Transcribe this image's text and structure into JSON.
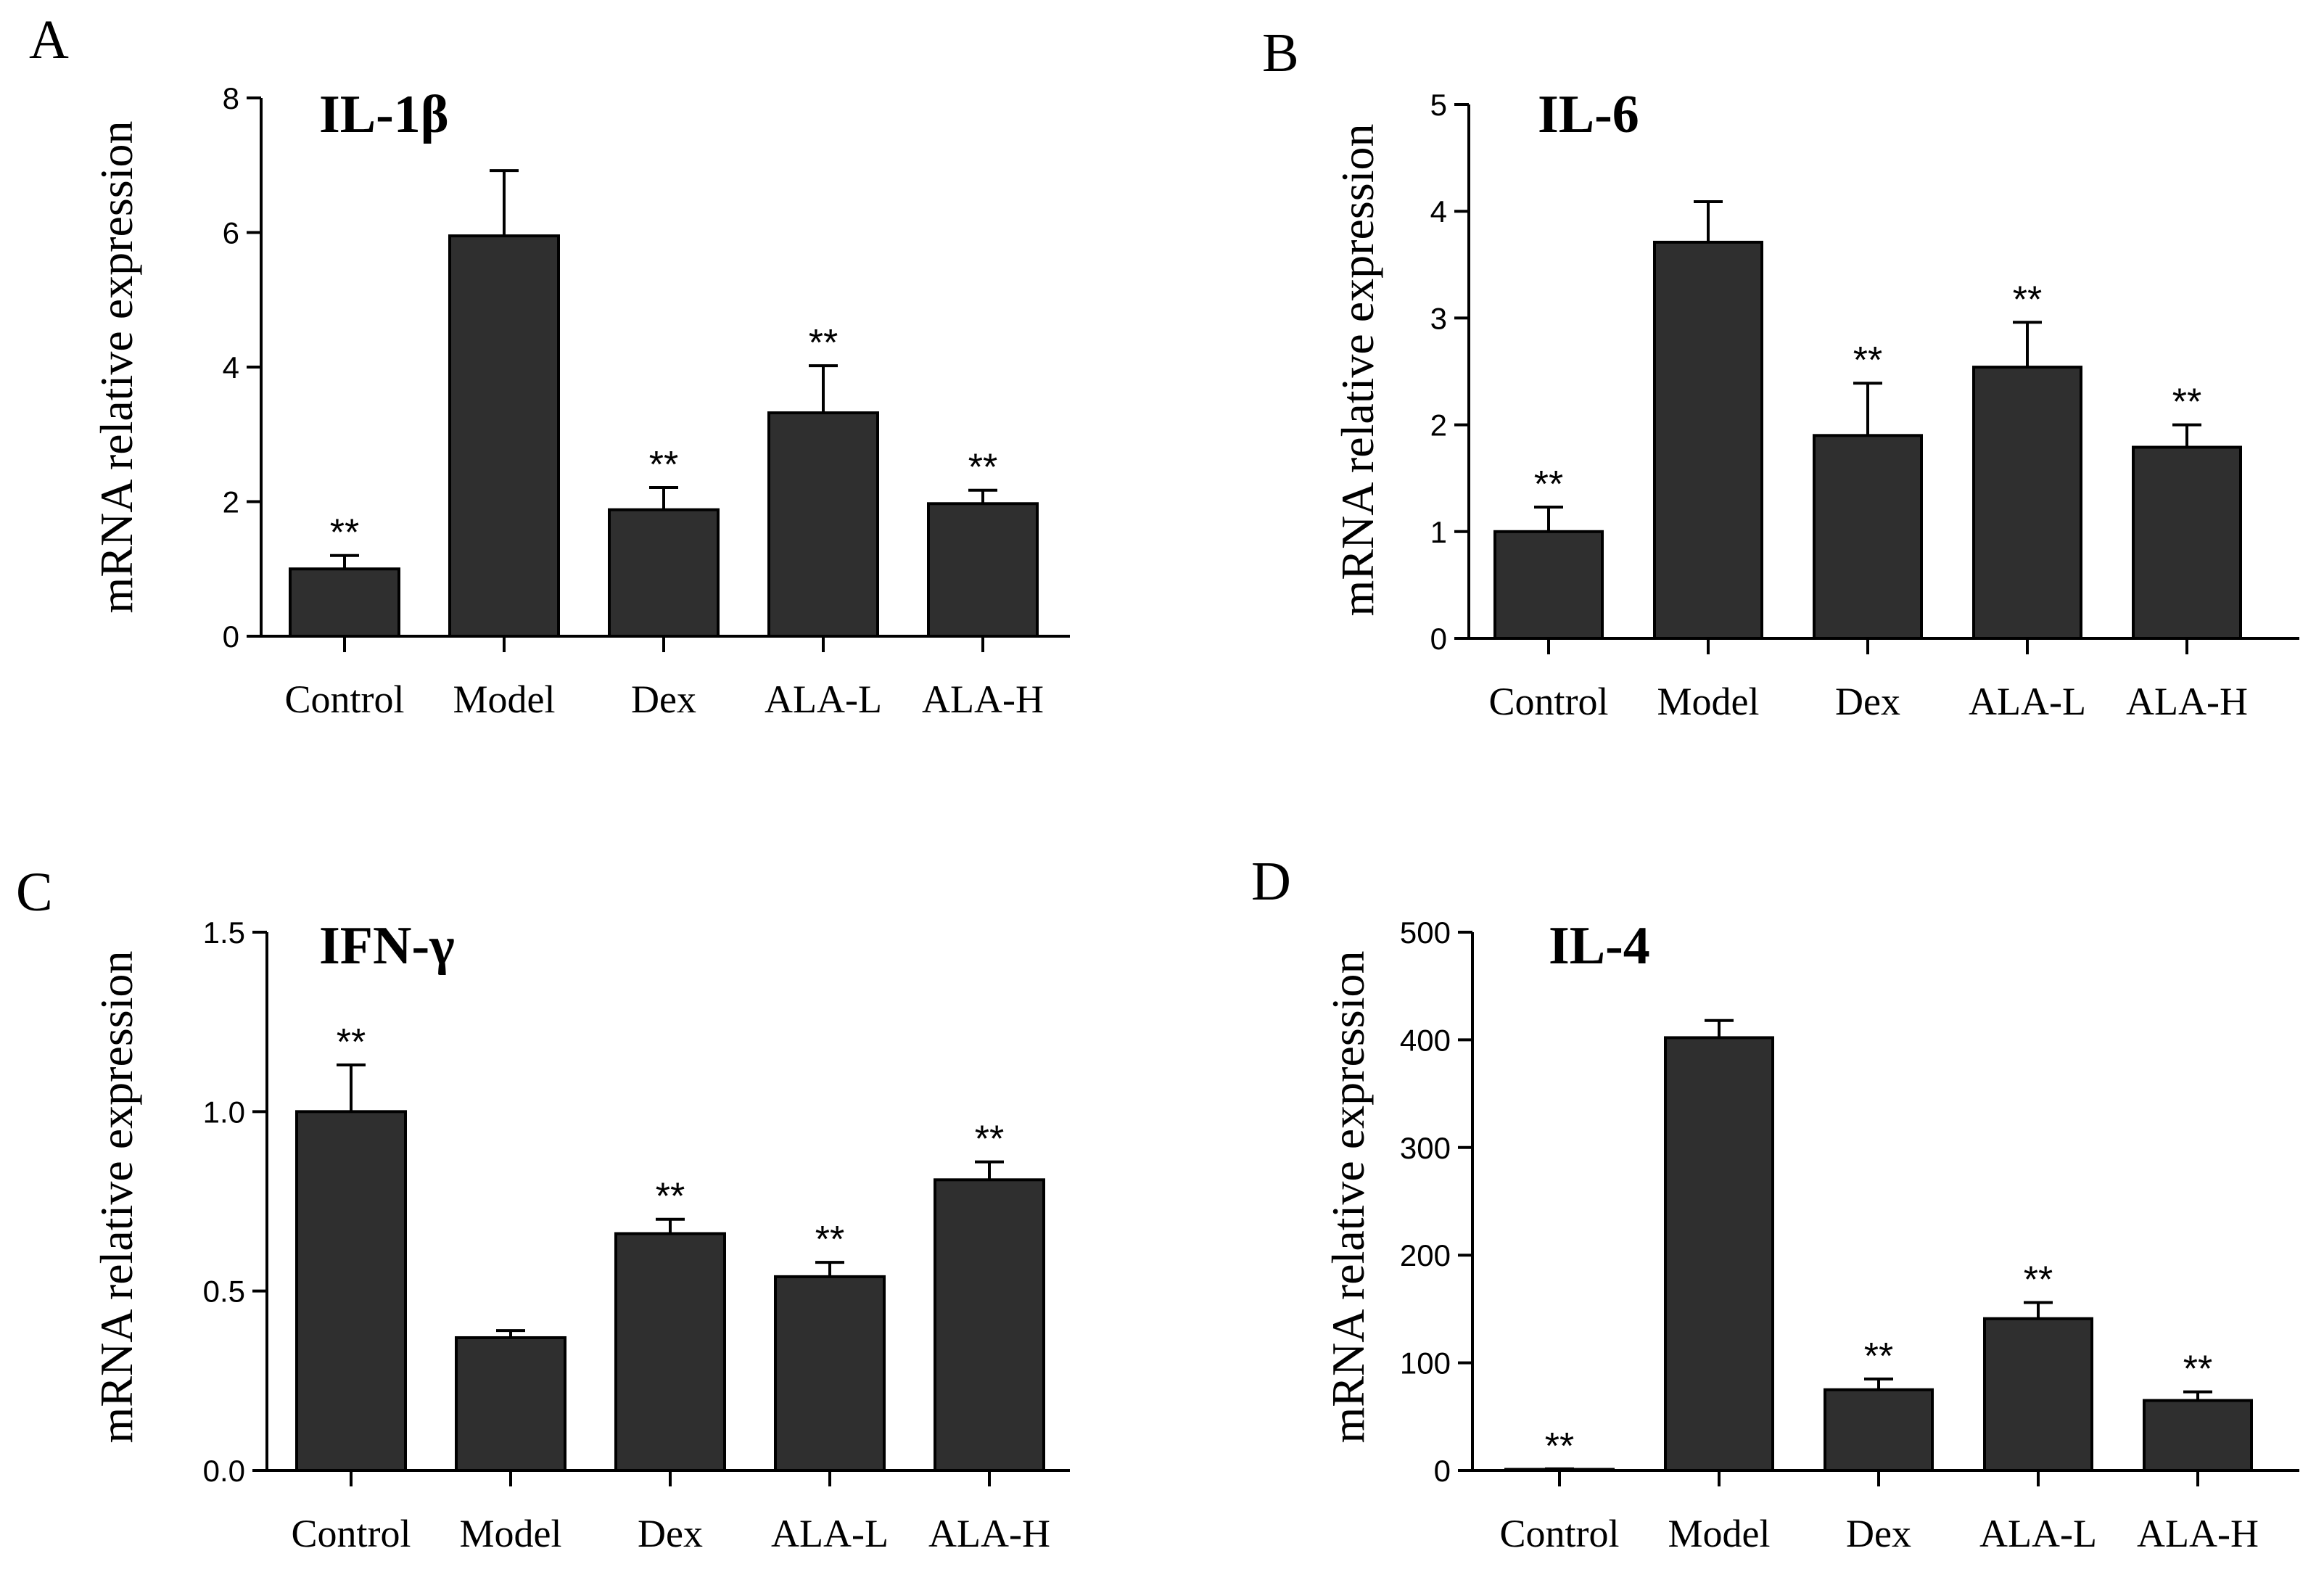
{
  "chart_data": [
    {
      "type": "bar",
      "panel": "A",
      "title": "IL-1β",
      "ylabel": "mRNA relative expression",
      "categories": [
        "Control",
        "Model",
        "Dex",
        "ALA-L",
        "ALA-H"
      ],
      "values": [
        1.0,
        5.95,
        1.88,
        3.32,
        1.97
      ],
      "errors": [
        0.2,
        0.97,
        0.33,
        0.7,
        0.2
      ],
      "annotations": [
        "**",
        "",
        "**",
        "**",
        "**"
      ],
      "ylim": [
        0,
        8
      ],
      "yticks": [
        "0",
        "2",
        "4",
        "6",
        "8"
      ],
      "ytick_values": [
        0,
        2,
        4,
        6,
        8
      ],
      "color": "#2f2f2f"
    },
    {
      "type": "bar",
      "panel": "B",
      "title": "IL-6",
      "ylabel": "mRNA relative expression",
      "categories": [
        "Control",
        "Model",
        "Dex",
        "ALA-L",
        "ALA-H"
      ],
      "values": [
        1.0,
        3.71,
        1.9,
        2.54,
        1.79
      ],
      "errors": [
        0.23,
        0.38,
        0.49,
        0.42,
        0.21
      ],
      "annotations": [
        "**",
        "",
        "**",
        "**",
        "**"
      ],
      "ylim": [
        0,
        5
      ],
      "yticks": [
        "0",
        "1",
        "2",
        "3",
        "4",
        "5"
      ],
      "ytick_values": [
        0,
        1,
        2,
        3,
        4,
        5
      ],
      "color": "#2f2f2f"
    },
    {
      "type": "bar",
      "panel": "C",
      "title": "IFN-γ",
      "ylabel": "mRNA relative expression",
      "categories": [
        "Control",
        "Model",
        "Dex",
        "ALA-L",
        "ALA-H"
      ],
      "values": [
        1.0,
        0.37,
        0.66,
        0.54,
        0.81
      ],
      "errors": [
        0.13,
        0.02,
        0.04,
        0.04,
        0.05
      ],
      "annotations": [
        "**",
        "",
        "**",
        "**",
        "**"
      ],
      "ylim": [
        0,
        1.5
      ],
      "yticks": [
        "0.0",
        "0.5",
        "1.0",
        "1.5"
      ],
      "ytick_values": [
        0,
        0.5,
        1.0,
        1.5
      ],
      "color": "#2f2f2f"
    },
    {
      "type": "bar",
      "panel": "D",
      "title": "IL-4",
      "ylabel": "mRNA relative expression",
      "categories": [
        "Control",
        "Model",
        "Dex",
        "ALA-L",
        "ALA-H"
      ],
      "values": [
        1.0,
        402,
        75,
        141,
        65
      ],
      "errors": [
        0.5,
        16,
        10,
        15,
        8
      ],
      "annotations": [
        "**",
        "",
        "**",
        "**",
        "**"
      ],
      "ylim": [
        0,
        500
      ],
      "yticks": [
        "0",
        "100",
        "200",
        "300",
        "400",
        "500"
      ],
      "ytick_values": [
        0,
        100,
        200,
        300,
        400,
        500
      ],
      "color": "#2f2f2f"
    }
  ]
}
